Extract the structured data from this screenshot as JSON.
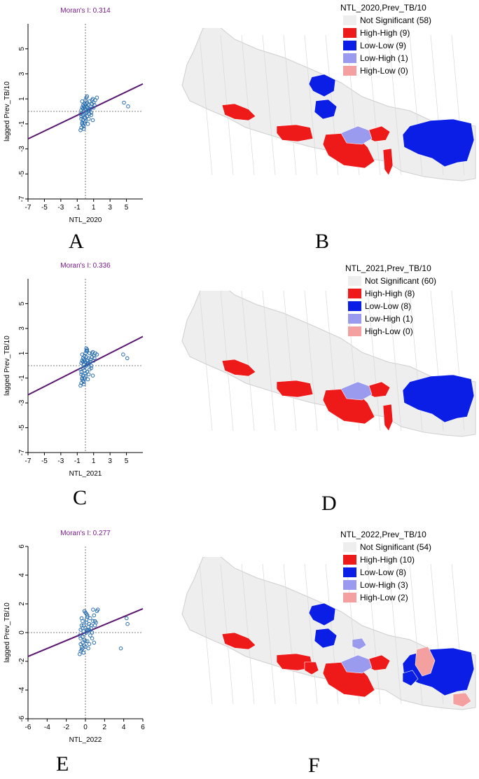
{
  "colors": {
    "not_significant": "#eeeeee",
    "high_high": "#ee1a1a",
    "low_low": "#0a1ee6",
    "low_high": "#9a9aee",
    "high_low": "#f4a0a0",
    "moran_title": "#7a1a8c",
    "regression_line": "#5a1670",
    "points": "#2a6fb0"
  },
  "icons": [
    "nepal-lisa-cluster-map"
  ],
  "panel_labels": {
    "A": "A",
    "B": "B",
    "C": "C",
    "D": "D",
    "E": "E",
    "F": "F"
  },
  "chart_data": [
    {
      "type": "scatter",
      "title": "Moran's I: 0.314",
      "xlabel": "NTL_2020",
      "ylabel": "lagged Prev_TB/10",
      "xlim": [
        -7,
        7
      ],
      "ylim": [
        -7,
        7
      ],
      "xticks": [
        "-7",
        "-5",
        "-3",
        "-1",
        "1",
        "3",
        "5"
      ],
      "yticks": [
        "-7",
        "-5",
        "-3",
        "-1",
        "1",
        "3",
        "5"
      ],
      "regression_slope": 0.314,
      "reference_lines": {
        "x": 0,
        "y": 0
      },
      "points": {
        "x": [
          -0.6,
          -0.5,
          -0.5,
          -0.4,
          -0.4,
          -0.3,
          -0.3,
          -0.2,
          -0.2,
          -0.1,
          -0.1,
          0.0,
          0.0,
          0.1,
          0.1,
          0.2,
          0.2,
          0.3,
          0.3,
          0.4,
          0.5,
          0.6,
          0.7,
          0.8,
          0.9,
          1.0,
          1.2,
          1.4,
          -0.6,
          -0.5,
          -0.4,
          -0.3,
          -0.2,
          -0.1,
          0.0,
          0.1,
          0.2,
          0.4,
          0.6,
          0.8,
          1.1,
          -0.5,
          -0.3,
          -0.1,
          0.1,
          0.3,
          0.5,
          0.9,
          -0.4,
          -0.2,
          0.0,
          0.2,
          0.4,
          0.7,
          1.0,
          -0.3,
          -0.1,
          4.7,
          5.2
        ],
        "y": [
          -0.2,
          0.1,
          -0.6,
          0.3,
          -0.9,
          0.5,
          -0.3,
          0.0,
          -1.2,
          0.6,
          -0.5,
          0.2,
          -0.8,
          0.4,
          -0.1,
          0.7,
          -0.4,
          0.1,
          -1.0,
          0.5,
          0.8,
          0.2,
          -0.3,
          0.6,
          1.0,
          0.3,
          0.9,
          1.1,
          -1.5,
          -1.3,
          -1.0,
          -0.7,
          -1.4,
          -0.2,
          0.9,
          1.1,
          0.3,
          -0.6,
          0.4,
          0.9,
          0.5,
          -0.4,
          0.2,
          -0.9,
          0.6,
          0.0,
          -0.2,
          -0.7,
          0.8,
          0.4,
          -0.5,
          1.2,
          0.1,
          -0.1,
          0.7,
          -1.1,
          0.3,
          0.7,
          0.4
        ]
      }
    },
    {
      "type": "map",
      "legend_title": "NTL_2020,Prev_TB/10",
      "legend": [
        {
          "label": "Not Significant (58)",
          "category": "not_significant"
        },
        {
          "label": "High-High (9)",
          "category": "high_high"
        },
        {
          "label": "Low-Low (9)",
          "category": "low_low"
        },
        {
          "label": "Low-High (1)",
          "category": "low_high"
        },
        {
          "label": "High-Low (0)",
          "category": "high_low"
        }
      ]
    },
    {
      "type": "scatter",
      "title": "Moran's I: 0.336",
      "xlabel": "NTL_2021",
      "ylabel": "lagged Prev_TB/10",
      "xlim": [
        -7,
        7
      ],
      "ylim": [
        -7,
        7
      ],
      "xticks": [
        "-7",
        "-5",
        "-3",
        "-1",
        "1",
        "3",
        "5"
      ],
      "yticks": [
        "-7",
        "-5",
        "-3",
        "-1",
        "1",
        "3",
        "5"
      ],
      "regression_slope": 0.336,
      "reference_lines": {
        "x": 0,
        "y": 0
      },
      "points": {
        "x": [
          -0.6,
          -0.5,
          -0.5,
          -0.4,
          -0.4,
          -0.3,
          -0.3,
          -0.2,
          -0.2,
          -0.1,
          -0.1,
          0.0,
          0.0,
          0.1,
          0.1,
          0.2,
          0.2,
          0.3,
          0.3,
          0.4,
          0.5,
          0.6,
          0.7,
          0.8,
          0.9,
          1.0,
          1.2,
          1.4,
          -0.6,
          -0.5,
          -0.4,
          -0.3,
          -0.2,
          -0.1,
          0.0,
          0.1,
          0.2,
          0.4,
          0.6,
          0.8,
          1.1,
          -0.5,
          -0.3,
          -0.1,
          0.1,
          0.3,
          0.5,
          0.9,
          -0.4,
          -0.2,
          0.0,
          0.2,
          0.4,
          0.7,
          1.0,
          -0.3,
          -0.1,
          4.6,
          5.1
        ],
        "y": [
          -0.3,
          0.2,
          -0.7,
          0.4,
          -1.0,
          0.6,
          -0.2,
          0.1,
          -1.3,
          0.8,
          -0.4,
          0.3,
          -0.9,
          1.4,
          0.0,
          1.2,
          -0.5,
          0.2,
          -1.1,
          0.6,
          1.0,
          0.3,
          -0.2,
          0.7,
          1.1,
          0.4,
          1.0,
          0.9,
          -1.6,
          -1.4,
          -1.1,
          -0.8,
          -1.5,
          -0.1,
          1.0,
          1.2,
          0.4,
          -0.7,
          0.5,
          1.0,
          0.6,
          -0.5,
          0.3,
          -1.0,
          0.7,
          0.1,
          -0.3,
          -0.8,
          0.9,
          0.5,
          -0.6,
          1.3,
          0.2,
          0.0,
          0.8,
          -1.2,
          0.4,
          0.9,
          0.6
        ]
      }
    },
    {
      "type": "map",
      "legend_title": "NTL_2021,Prev_TB/10",
      "legend": [
        {
          "label": "Not Significant (60)",
          "category": "not_significant"
        },
        {
          "label": "High-High (8)",
          "category": "high_high"
        },
        {
          "label": "Low-Low (8)",
          "category": "low_low"
        },
        {
          "label": "Low-High (1)",
          "category": "low_high"
        },
        {
          "label": "High-Low (0)",
          "category": "high_low"
        }
      ]
    },
    {
      "type": "scatter",
      "title": "Moran's I: 0.277",
      "xlabel": "NTL_2022",
      "ylabel": "lagged Prev_TB/10",
      "xlim": [
        -6,
        6
      ],
      "ylim": [
        -6,
        6
      ],
      "xticks": [
        "-6",
        "-4",
        "-2",
        "0",
        "2",
        "4",
        "6"
      ],
      "yticks": [
        "-6",
        "-4",
        "-2",
        "0",
        "2",
        "4",
        "6"
      ],
      "regression_slope": 0.277,
      "reference_lines": {
        "x": 0,
        "y": 0
      },
      "points": {
        "x": [
          -0.6,
          -0.5,
          -0.5,
          -0.4,
          -0.4,
          -0.3,
          -0.3,
          -0.2,
          -0.2,
          -0.1,
          -0.1,
          0.0,
          0.0,
          0.1,
          0.1,
          0.2,
          0.2,
          0.3,
          0.3,
          0.4,
          0.5,
          0.6,
          0.7,
          0.8,
          0.9,
          1.0,
          1.2,
          1.3,
          -0.6,
          -0.5,
          -0.4,
          -0.3,
          -0.2,
          -0.1,
          0.0,
          0.1,
          0.2,
          0.4,
          0.6,
          0.8,
          1.1,
          -0.5,
          -0.3,
          -0.1,
          0.1,
          0.3,
          0.5,
          0.9,
          -0.4,
          -0.2,
          0.0,
          0.2,
          0.4,
          0.7,
          1.0,
          -0.3,
          3.7,
          4.3,
          4.4
        ],
        "y": [
          -0.2,
          0.2,
          -0.8,
          0.5,
          -1.2,
          0.8,
          -0.3,
          0.1,
          -1.4,
          1.5,
          -0.5,
          0.3,
          -1.0,
          1.3,
          0.0,
          1.1,
          -0.6,
          0.4,
          -1.1,
          0.6,
          1.0,
          0.3,
          -0.4,
          0.8,
          1.2,
          0.5,
          1.5,
          1.6,
          -1.5,
          -1.3,
          -1.0,
          -0.7,
          -1.4,
          -0.1,
          1.4,
          0.9,
          0.2,
          -0.8,
          0.5,
          1.6,
          0.7,
          -0.4,
          0.3,
          -0.9,
          0.7,
          0.1,
          -0.2,
          -0.7,
          1.0,
          0.5,
          -0.6,
          1.2,
          0.2,
          0.0,
          0.8,
          -1.1,
          -1.1,
          1.0,
          0.6
        ]
      }
    },
    {
      "type": "map",
      "legend_title": "NTL_2022,Prev_TB/10",
      "legend": [
        {
          "label": "Not Significant (54)",
          "category": "not_significant"
        },
        {
          "label": "High-High (10)",
          "category": "high_high"
        },
        {
          "label": "Low-Low (8)",
          "category": "low_low"
        },
        {
          "label": "Low-High (3)",
          "category": "low_high"
        },
        {
          "label": "High-Low (2)",
          "category": "high_low"
        }
      ]
    }
  ]
}
